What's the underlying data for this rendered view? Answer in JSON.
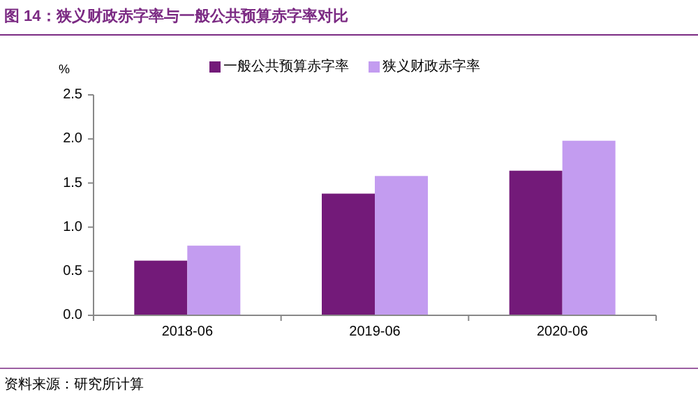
{
  "chart_data": {
    "type": "bar",
    "title": "图 14：狭义财政赤字率与一般公共预算赤字率对比",
    "ylabel": "%",
    "categories": [
      "2018-06",
      "2019-06",
      "2020-06"
    ],
    "series": [
      {
        "name": "一般公共预算赤字率",
        "color": "#731a79",
        "values": [
          0.62,
          1.38,
          1.64
        ]
      },
      {
        "name": "狭义财政赤字率",
        "color": "#c39cf0",
        "values": [
          0.79,
          1.58,
          1.98
        ]
      }
    ],
    "ylim": [
      0,
      2.5
    ],
    "yticks": [
      {
        "value": 0,
        "label": "0.0"
      },
      {
        "value": 0.5,
        "label": "0.5"
      },
      {
        "value": 1,
        "label": "1.0"
      },
      {
        "value": 1.5,
        "label": "1.5"
      },
      {
        "value": 2,
        "label": "2.0"
      },
      {
        "value": 2.5,
        "label": "2.5"
      }
    ],
    "grid": false,
    "legend": "top",
    "annotations": [
      "资料来源：研究所计算"
    ]
  }
}
